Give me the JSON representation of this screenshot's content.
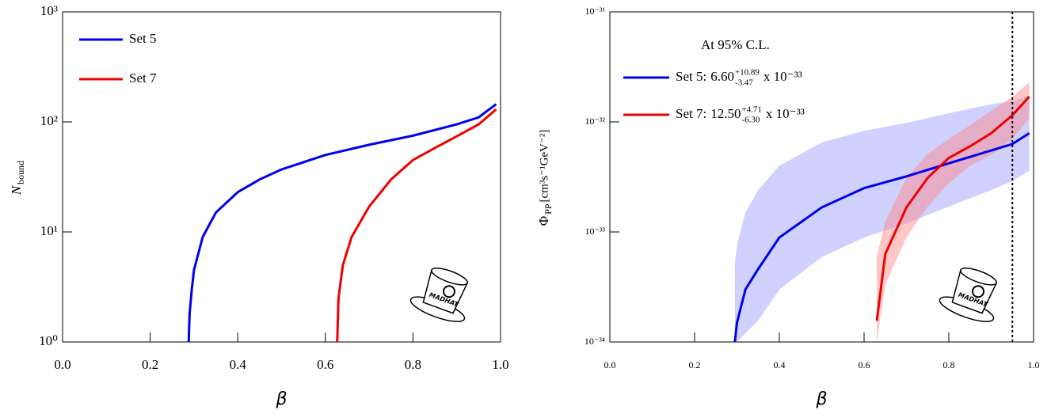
{
  "chart_data": [
    {
      "type": "line",
      "xlabel": "β",
      "ylabel": {
        "main": "N",
        "sub": "bound"
      },
      "ylog": true,
      "xlim": [
        0,
        1
      ],
      "ylim": [
        1,
        1000
      ],
      "xticks": [
        {
          "value": 0,
          "label": "0.0"
        },
        0.2,
        0.4,
        0.6,
        0.8,
        {
          "value": 1,
          "label": "1.0"
        }
      ],
      "yticks": [
        {
          "value": 1,
          "label": "10⁰"
        },
        {
          "value": 10,
          "label": "10¹"
        },
        {
          "value": 100,
          "label": "10²"
        },
        {
          "value": 1000,
          "label": "10³"
        }
      ],
      "legend": "upper left",
      "logo_text": "MADHAT",
      "series": [
        {
          "name": "Set 5",
          "color": "#0000ee",
          "x": [
            0.288,
            0.29,
            0.295,
            0.3,
            0.32,
            0.35,
            0.4,
            0.45,
            0.5,
            0.6,
            0.7,
            0.8,
            0.9,
            0.95,
            0.99
          ],
          "values": [
            1,
            1.8,
            3,
            4.5,
            9,
            15,
            23,
            30,
            37,
            50,
            62,
            75,
            95,
            110,
            145
          ]
        },
        {
          "name": "Set 7",
          "color": "#ee0000",
          "x": [
            0.627,
            0.63,
            0.64,
            0.66,
            0.7,
            0.75,
            0.8,
            0.85,
            0.9,
            0.95,
            0.99
          ],
          "values": [
            1,
            2.5,
            5,
            9,
            17,
            30,
            45,
            58,
            74,
            95,
            130
          ]
        }
      ]
    },
    {
      "type": "line",
      "xlabel": "β",
      "ylabel": {
        "main": "Φ",
        "sub": "PP",
        "unit": "[cm³s⁻¹GeV⁻²]"
      },
      "ylog": true,
      "xlim": [
        0,
        1
      ],
      "ylim": [
        1e-34,
        1e-31
      ],
      "xticks": [
        {
          "value": 0,
          "label": "0.0"
        },
        0.2,
        0.4,
        0.6,
        0.8,
        {
          "value": 1,
          "label": "1.0"
        }
      ],
      "yticks": [
        {
          "value": 1e-34,
          "label": "10⁻³⁴"
        },
        {
          "value": 1e-33,
          "label": "10⁻³³"
        },
        {
          "value": 1e-32,
          "label": "10⁻³²"
        },
        {
          "value": 1e-31,
          "label": "10⁻³¹"
        }
      ],
      "legend": "upper left",
      "annotation": "At 95% C.L.",
      "vline": 0.95,
      "logo_text": "MADHAT",
      "series": [
        {
          "name": "Set 5:",
          "color": "#0000ee",
          "band_color": "#9999ff",
          "legend_value": {
            "central": "6.60",
            "plus": "+10.89",
            "minus": "-3.47",
            "scale": "x 10⁻³³"
          },
          "x": [
            0.295,
            0.3,
            0.32,
            0.35,
            0.4,
            0.5,
            0.6,
            0.7,
            0.8,
            0.9,
            0.95,
            0.99
          ],
          "values": [
            1e-34,
            1.5e-34,
            3e-34,
            4.6e-34,
            8.9e-34,
            1.67e-33,
            2.5e-33,
            3.2e-33,
            4.2e-33,
            5.5e-33,
            6.3e-33,
            7.9e-33
          ],
          "upper": [
            5e-34,
            7.6e-34,
            1.5e-33,
            2.4e-33,
            4e-33,
            6.5e-33,
            8.3e-33,
            9.8e-33,
            1.2e-32,
            1.45e-32,
            1.55e-32,
            1.7e-32
          ],
          "lower": [
            1e-34,
            1e-34,
            1.2e-34,
            1.56e-34,
            3e-34,
            5.9e-34,
            8.9e-34,
            1.2e-33,
            1.7e-33,
            2.4e-33,
            2.9e-33,
            3.6e-33
          ]
        },
        {
          "name": "Set 7:",
          "color": "#ee0000",
          "band_color": "#ff8080",
          "legend_value": {
            "central": "12.50",
            "plus": "+4.71",
            "minus": "-6.30",
            "scale": "x 10⁻³³"
          },
          "x": [
            0.63,
            0.65,
            0.7,
            0.75,
            0.8,
            0.85,
            0.9,
            0.95,
            0.99
          ],
          "values": [
            1.56e-34,
            6.3e-34,
            1.67e-33,
            3.1e-33,
            4.7e-33,
            6e-33,
            7.9e-33,
            1.15e-32,
            1.7e-32
          ],
          "upper": [
            6e-34,
            1.24e-33,
            3.1e-33,
            5.1e-33,
            7e-33,
            9.3e-33,
            1.26e-32,
            1.7e-32,
            2.3e-32
          ],
          "lower": [
            1e-34,
            3.3e-34,
            9e-34,
            1.7e-33,
            2.75e-33,
            4e-33,
            5e-33,
            7e-33,
            1.07e-32
          ]
        }
      ]
    }
  ]
}
